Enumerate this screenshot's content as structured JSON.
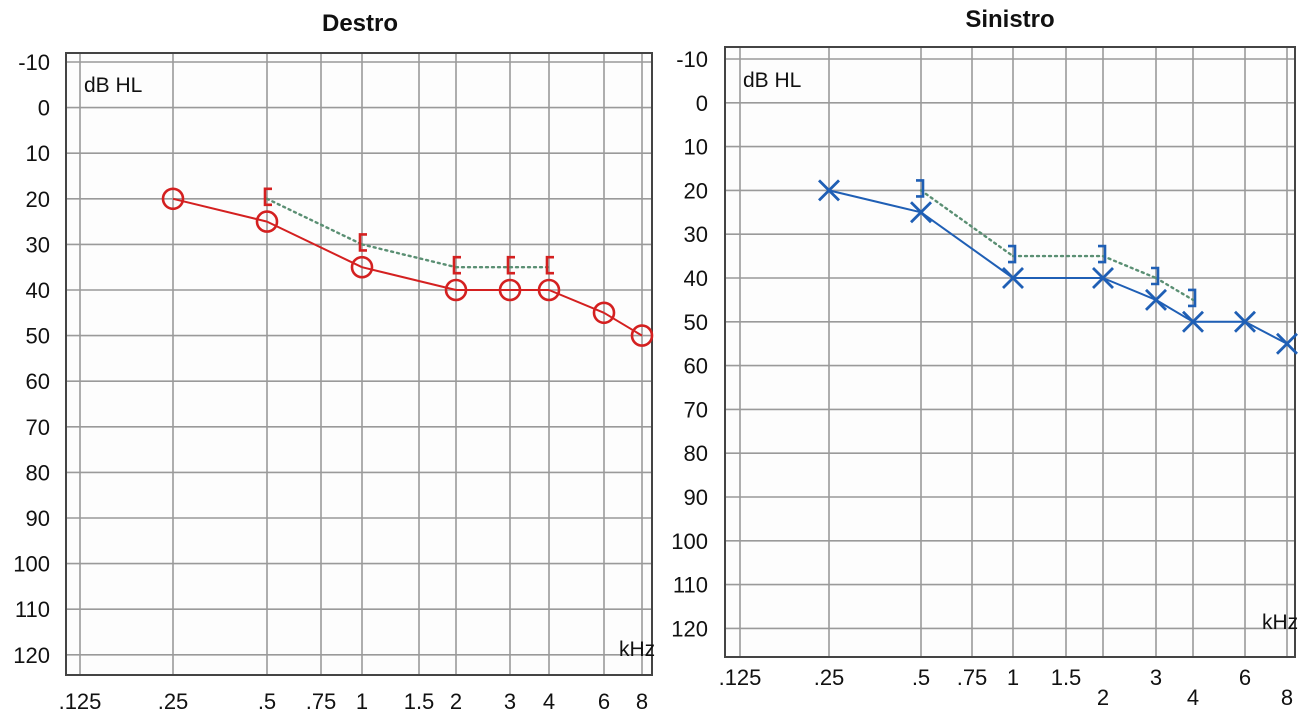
{
  "chart_data": [
    {
      "type": "line",
      "title": "Destro",
      "ylabel": "dB HL",
      "xlabel": "kHz",
      "ylim": [
        -10,
        120
      ],
      "y_inverted": true,
      "yticks": [
        "-10",
        "0",
        "10",
        "20",
        "30",
        "40",
        "50",
        "60",
        "70",
        "80",
        "90",
        "100",
        "110",
        "120"
      ],
      "xticks": [
        {
          "label": ".125",
          "f": 0.125
        },
        {
          "label": ".25",
          "f": 0.25
        },
        {
          "label": ".5",
          "f": 0.5
        },
        {
          "label": ".75",
          "f": 0.75
        },
        {
          "label": "1",
          "f": 1
        },
        {
          "label": "1.5",
          "f": 1.5
        },
        {
          "label": "2",
          "f": 2
        },
        {
          "label": "3",
          "f": 3
        },
        {
          "label": "4",
          "f": 4
        },
        {
          "label": "6",
          "f": 6
        },
        {
          "label": "8",
          "f": 8
        }
      ],
      "grid": true,
      "series": [
        {
          "marker": "circle",
          "line": "solid",
          "color": "#d42020",
          "points": [
            [
              0.25,
              20
            ],
            [
              0.5,
              25
            ],
            [
              1,
              35
            ],
            [
              2,
              40
            ],
            [
              3,
              40
            ],
            [
              4,
              40
            ],
            [
              6,
              45
            ],
            [
              8,
              50
            ]
          ]
        },
        {
          "marker": "bracket-left",
          "line": "dotted",
          "color": "#d42020",
          "line_color": "#5a8f73",
          "points": [
            [
              0.5,
              20
            ],
            [
              1,
              30
            ],
            [
              2,
              35
            ],
            [
              3,
              35
            ],
            [
              4,
              35
            ]
          ]
        }
      ]
    },
    {
      "type": "line",
      "title": "Sinistro",
      "ylabel": "dB HL",
      "xlabel": "kHz",
      "ylim": [
        -10,
        120
      ],
      "y_inverted": true,
      "yticks": [
        "-10",
        "0",
        "10",
        "20",
        "30",
        "40",
        "50",
        "60",
        "70",
        "80",
        "90",
        "100",
        "110",
        "120"
      ],
      "xticks": [
        {
          "label": ".125",
          "f": 0.125
        },
        {
          "label": ".25",
          "f": 0.25
        },
        {
          "label": ".5",
          "f": 0.5
        },
        {
          "label": ".75",
          "f": 0.75
        },
        {
          "label": "1",
          "f": 1
        },
        {
          "label": "1.5",
          "f": 1.5
        },
        {
          "label": "2",
          "f": 2
        },
        {
          "label": "3",
          "f": 3
        },
        {
          "label": "4",
          "f": 4
        },
        {
          "label": "6",
          "f": 6
        },
        {
          "label": "8",
          "f": 8
        }
      ],
      "grid": true,
      "series": [
        {
          "marker": "cross",
          "line": "solid",
          "color": "#1f5fb5",
          "points": [
            [
              0.25,
              20
            ],
            [
              0.5,
              25
            ],
            [
              1,
              40
            ],
            [
              2,
              40
            ],
            [
              3,
              45
            ],
            [
              4,
              50
            ],
            [
              6,
              50
            ],
            [
              8,
              55
            ]
          ]
        },
        {
          "marker": "bracket-right",
          "line": "dotted",
          "color": "#1f5fb5",
          "line_color": "#5a8f73",
          "points": [
            [
              0.5,
              20
            ],
            [
              1,
              35
            ],
            [
              2,
              35
            ],
            [
              3,
              40
            ],
            [
              4,
              45
            ]
          ]
        }
      ]
    }
  ]
}
